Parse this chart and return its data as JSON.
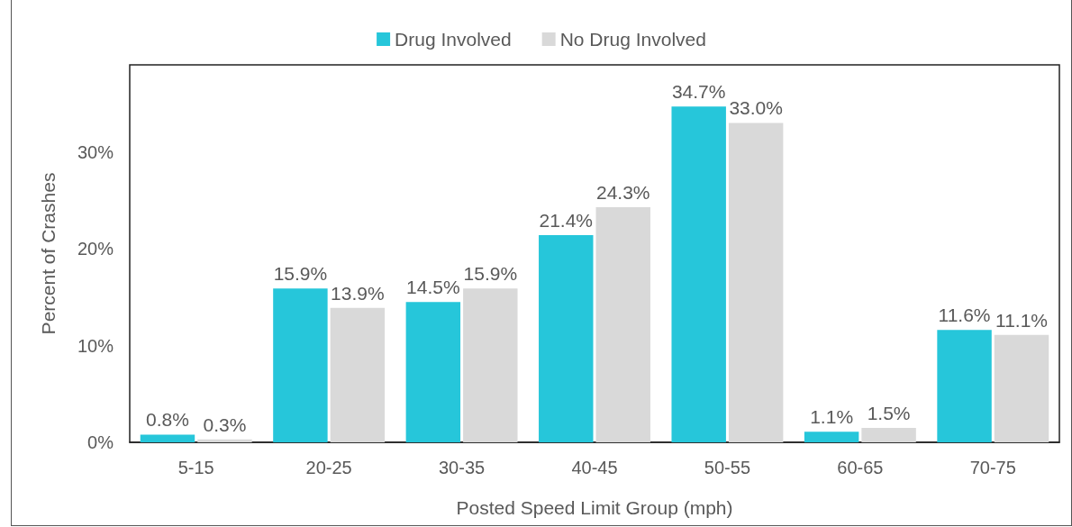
{
  "chart_data": {
    "type": "bar",
    "xlabel": "Posted Speed Limit Group (mph)",
    "ylabel": "Percent of Crashes",
    "categories": [
      "5-15",
      "20-25",
      "30-35",
      "40-45",
      "50-55",
      "60-65",
      "70-75"
    ],
    "series": [
      {
        "name": "Drug Involved",
        "color": "#26c6da",
        "values": [
          0.8,
          15.9,
          14.5,
          21.4,
          34.7,
          1.1,
          11.6
        ],
        "value_labels": [
          "0.8%",
          "15.9%",
          "14.5%",
          "21.4%",
          "34.7%",
          "1.1%",
          "11.6%"
        ]
      },
      {
        "name": "No Drug Involved",
        "color": "#d9d9d9",
        "values": [
          0.3,
          13.9,
          15.9,
          24.3,
          33.0,
          1.5,
          11.1
        ],
        "value_labels": [
          "0.3%",
          "13.9%",
          "15.9%",
          "24.3%",
          "33.0%",
          "1.5%",
          "11.1%"
        ]
      }
    ],
    "ylim": [
      0,
      39
    ],
    "yticks": [
      {
        "value": 0,
        "label": "0%"
      },
      {
        "value": 10,
        "label": "10%"
      },
      {
        "value": 20,
        "label": "20%"
      },
      {
        "value": 30,
        "label": "30%"
      }
    ],
    "grid": false,
    "legend": "top"
  }
}
